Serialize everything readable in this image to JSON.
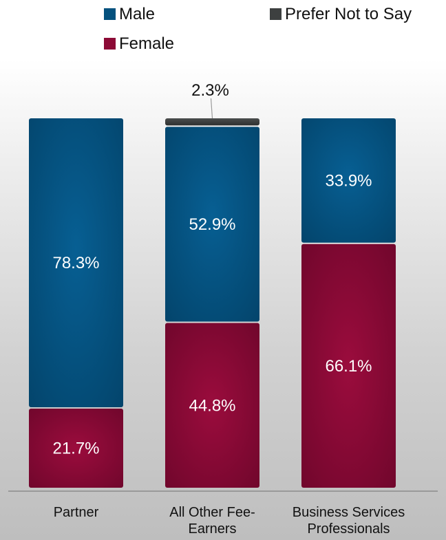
{
  "chart_data": {
    "type": "bar",
    "stacked": true,
    "categories": [
      [
        "Partner"
      ],
      [
        "All Other Fee-",
        "Earners"
      ],
      [
        "Business Services",
        "Professionals"
      ]
    ],
    "series": [
      {
        "name": "Female",
        "color": "#8c0a36",
        "values": [
          21.7,
          44.8,
          66.1
        ],
        "labels": [
          "21.7%",
          "44.8%",
          "66.1%"
        ]
      },
      {
        "name": "Male",
        "color": "#04517e",
        "values": [
          78.3,
          52.9,
          33.9
        ],
        "labels": [
          "78.3%",
          "52.9%",
          "33.9%"
        ]
      },
      {
        "name": "Prefer Not to Say",
        "color": "#3d4040",
        "values": [
          0,
          2.3,
          0
        ],
        "labels": [
          "",
          "2.3%",
          ""
        ]
      }
    ],
    "legend_order": [
      "Male",
      "Prefer Not to Say",
      "Female"
    ],
    "legend_position": "top",
    "ylim": [
      0,
      100
    ],
    "grid": false,
    "title": "",
    "xlabel": "",
    "ylabel": ""
  }
}
